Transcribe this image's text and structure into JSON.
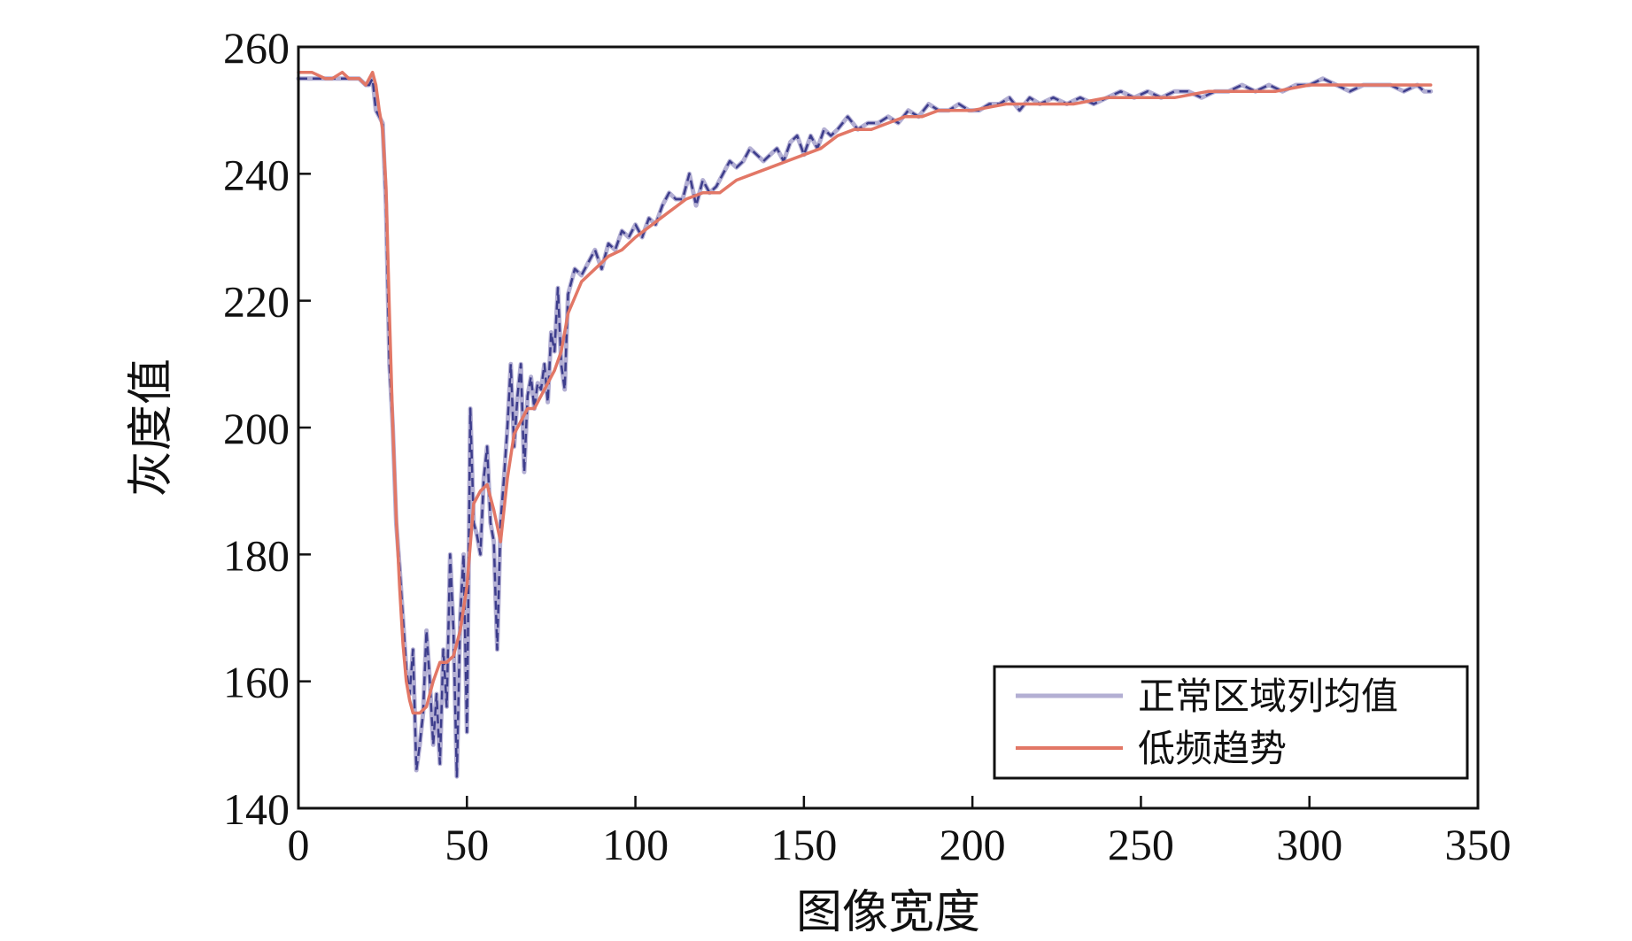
{
  "chart_data": {
    "type": "line",
    "title": "",
    "xlabel": "图像宽度",
    "ylabel": "灰度值",
    "xlim": [
      0,
      350
    ],
    "ylim": [
      140,
      260
    ],
    "xticks": [
      0,
      50,
      100,
      150,
      200,
      250,
      300,
      350
    ],
    "yticks": [
      140,
      160,
      180,
      200,
      220,
      240,
      260
    ],
    "grid": false,
    "legend_position": "bottom-right",
    "series": [
      {
        "name": "正常区域列均值",
        "color": "#b3afd3",
        "accent_color": "#3d3d8c",
        "dashed_overlay": true,
        "x": [
          0,
          2,
          4,
          6,
          8,
          10,
          12,
          14,
          16,
          18,
          20,
          21,
          22,
          23,
          24,
          25,
          26,
          27,
          28,
          29,
          30,
          31,
          32,
          33,
          34,
          35,
          36,
          37,
          38,
          39,
          40,
          41,
          42,
          43,
          44,
          45,
          46,
          47,
          48,
          49,
          50,
          51,
          52,
          53,
          54,
          55,
          56,
          57,
          58,
          59,
          60,
          61,
          62,
          63,
          64,
          65,
          66,
          67,
          68,
          69,
          70,
          71,
          72,
          73,
          74,
          75,
          76,
          77,
          78,
          79,
          80,
          82,
          84,
          86,
          88,
          90,
          92,
          94,
          96,
          98,
          100,
          102,
          104,
          106,
          108,
          110,
          112,
          114,
          116,
          118,
          120,
          122,
          124,
          126,
          128,
          130,
          132,
          134,
          136,
          138,
          140,
          142,
          144,
          146,
          148,
          150,
          152,
          154,
          156,
          158,
          160,
          163,
          166,
          169,
          172,
          175,
          178,
          181,
          184,
          187,
          190,
          193,
          196,
          199,
          202,
          205,
          208,
          211,
          214,
          217,
          220,
          224,
          228,
          232,
          236,
          240,
          244,
          248,
          252,
          256,
          260,
          264,
          268,
          272,
          276,
          280,
          284,
          288,
          292,
          296,
          300,
          304,
          308,
          312,
          316,
          320,
          324,
          328,
          332,
          334,
          336
        ],
        "values": [
          255,
          255,
          255,
          255,
          255,
          255,
          255,
          255,
          255,
          255,
          254,
          254,
          255,
          250,
          249,
          248,
          235,
          210,
          200,
          185,
          178,
          170,
          162,
          158,
          165,
          146,
          150,
          155,
          168,
          160,
          150,
          158,
          147,
          165,
          156,
          180,
          168,
          145,
          170,
          180,
          152,
          203,
          185,
          183,
          180,
          192,
          197,
          185,
          182,
          165,
          185,
          192,
          200,
          210,
          197,
          205,
          210,
          193,
          205,
          208,
          203,
          207,
          206,
          210,
          204,
          215,
          212,
          222,
          210,
          206,
          221,
          225,
          224,
          226,
          228,
          225,
          229,
          228,
          231,
          230,
          232,
          230,
          233,
          232,
          235,
          237,
          236,
          236,
          240,
          235,
          239,
          237,
          238,
          240,
          242,
          241,
          242,
          244,
          243,
          242,
          243,
          244,
          242,
          245,
          246,
          243,
          246,
          244,
          247,
          246,
          247,
          249,
          247,
          248,
          248,
          249,
          248,
          250,
          249,
          251,
          250,
          250,
          251,
          250,
          250,
          251,
          251,
          252,
          250,
          252,
          251,
          252,
          251,
          252,
          251,
          252,
          253,
          252,
          253,
          252,
          253,
          253,
          252,
          253,
          253,
          254,
          253,
          254,
          253,
          254,
          254,
          255,
          254,
          253,
          254,
          254,
          254,
          253,
          254,
          253,
          253
        ]
      },
      {
        "name": "低频趋势",
        "color": "#e27766",
        "x": [
          0,
          4,
          8,
          10,
          13,
          15,
          18,
          20,
          22,
          23,
          24,
          25,
          26,
          27,
          28,
          29,
          30,
          31,
          32,
          33,
          34,
          35,
          36,
          38,
          40,
          42,
          44,
          46,
          48,
          50,
          52,
          54,
          56,
          58,
          60,
          62,
          64,
          66,
          68,
          70,
          72,
          74,
          76,
          78,
          80,
          84,
          88,
          92,
          96,
          100,
          105,
          110,
          115,
          120,
          125,
          130,
          135,
          140,
          145,
          150,
          155,
          160,
          165,
          170,
          175,
          180,
          185,
          190,
          195,
          200,
          210,
          220,
          230,
          240,
          250,
          260,
          270,
          280,
          290,
          300,
          310,
          320,
          330,
          336
        ],
        "values": [
          256,
          256,
          255,
          255,
          256,
          255,
          255,
          254,
          256,
          254,
          250,
          247,
          238,
          218,
          200,
          186,
          175,
          166,
          160,
          157,
          155,
          155,
          155,
          156,
          160,
          163,
          163,
          164,
          168,
          175,
          188,
          190,
          191,
          187,
          182,
          192,
          199,
          201,
          203,
          203,
          205,
          207,
          209,
          212,
          218,
          223,
          225,
          227,
          228,
          230,
          232,
          234,
          236,
          237,
          237,
          239,
          240,
          241,
          242,
          243,
          244,
          246,
          247,
          247,
          248,
          249,
          249,
          250,
          250,
          250,
          251,
          251,
          251,
          252,
          252,
          252,
          253,
          253,
          253,
          254,
          254,
          254,
          254,
          254
        ]
      }
    ]
  }
}
